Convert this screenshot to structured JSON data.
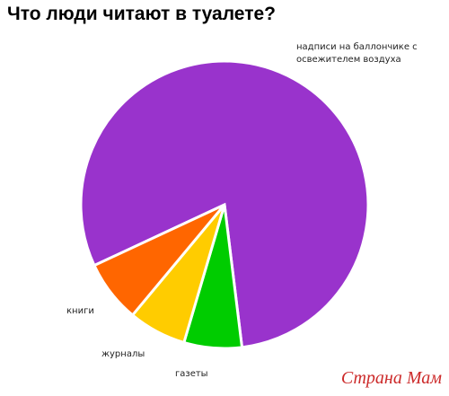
{
  "chart_data": {
    "type": "pie",
    "title": "Что люди читают в туалете?",
    "categories": [
      "надписи на баллончике с освежителем воздуха",
      "газеты",
      "журналы",
      "книги"
    ],
    "values": [
      80,
      6.5,
      6.5,
      7
    ],
    "colors": [
      "#9933cc",
      "#00cc00",
      "#ffcc00",
      "#ff6600"
    ],
    "watermark": "Страна Мам"
  }
}
